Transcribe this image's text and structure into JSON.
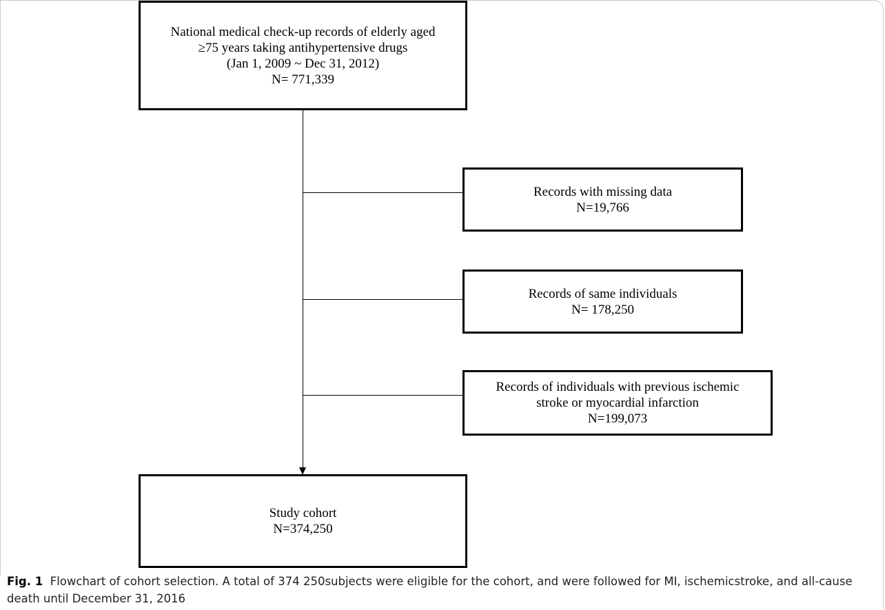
{
  "flowchart": {
    "top_box": {
      "lines": [
        "National medical check-up records of elderly aged",
        "≥75 years taking antihypertensive drugs",
        "(Jan 1, 2009 ~ Dec 31, 2012)",
        "N= 771,339"
      ]
    },
    "exclusions": [
      {
        "lines": [
          "Records with missing data",
          "N=19,766"
        ]
      },
      {
        "lines": [
          "Records of same individuals",
          "N= 178,250"
        ]
      },
      {
        "lines": [
          "Records of individuals with previous ischemic",
          "stroke or myocardial infarction",
          "N=199,073"
        ]
      }
    ],
    "final_box": {
      "lines": [
        "Study cohort",
        "N=374,250"
      ]
    }
  },
  "caption": {
    "label": "Fig. 1",
    "text": "Flowchart of cohort selection. A total of 374 250subjects were eligible for the cohort, and were followed for MI, ischemicstroke, and all-cause death until December 31, 2016"
  }
}
